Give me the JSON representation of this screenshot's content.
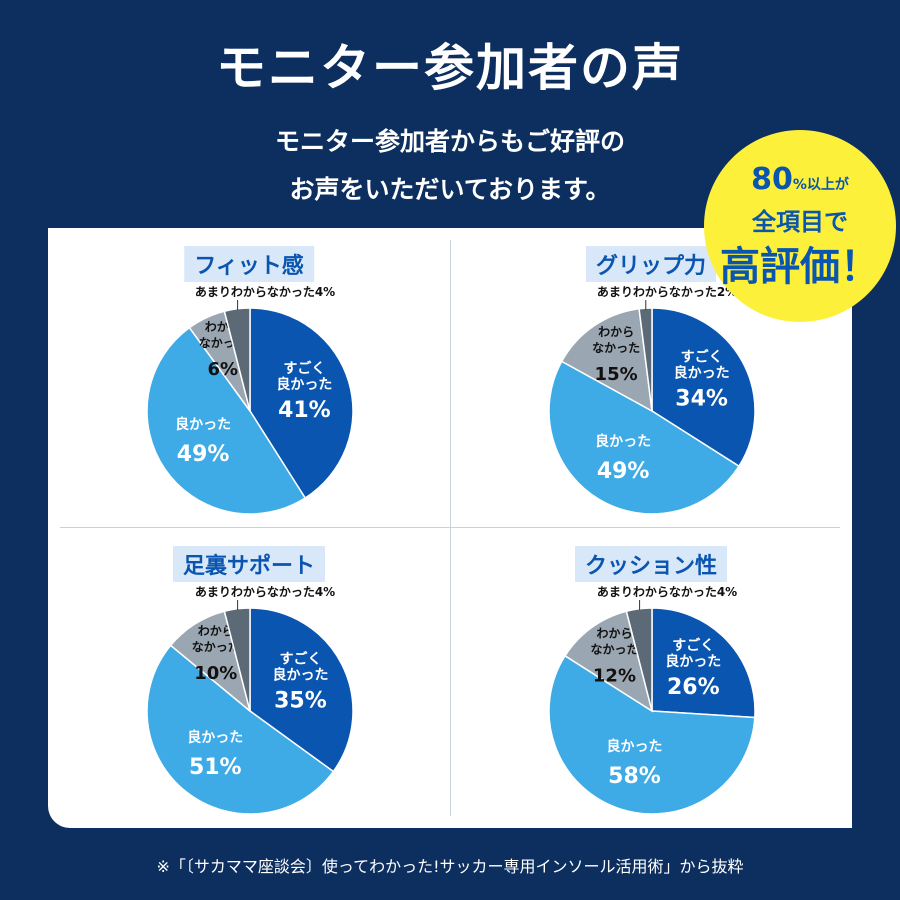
{
  "header": {
    "title": "モニター参加者の声",
    "subtitle_line1": "モニター参加者からもご好評の",
    "subtitle_line2": "お声をいただいております。"
  },
  "badge": {
    "big": "80",
    "pct": "%",
    "small": "以上が",
    "line2": "全項目で",
    "line3": "高評価！"
  },
  "footnote": "※「〔サカママ座談会〕使ってわかった!サッカー専用インソール活用術」から抜粋",
  "colors": {
    "background": "#0c2f5f",
    "very_good": "#0a55b0",
    "good": "#3eaae6",
    "unknown": "#9aa6b1",
    "not_really": "#5b6a76",
    "badge": "#fdf03a"
  },
  "chart_data": [
    {
      "type": "pie",
      "title": "フィット感",
      "categories": [
        "すごく良かった",
        "良かった",
        "わからなかった",
        "あまりわからなかった"
      ],
      "values": [
        41,
        49,
        6,
        4
      ]
    },
    {
      "type": "pie",
      "title": "グリップ力",
      "categories": [
        "すごく良かった",
        "良かった",
        "わからなかった",
        "あまりわからなかった"
      ],
      "values": [
        34,
        49,
        15,
        2
      ]
    },
    {
      "type": "pie",
      "title": "足裏サポート",
      "categories": [
        "すごく良かった",
        "良かった",
        "わからなかった",
        "あまりわからなかった"
      ],
      "values": [
        35,
        51,
        10,
        4
      ]
    },
    {
      "type": "pie",
      "title": "クッション性",
      "categories": [
        "すごく良かった",
        "良かった",
        "わからなかった",
        "あまりわからなかった"
      ],
      "values": [
        26,
        58,
        12,
        4
      ]
    }
  ]
}
